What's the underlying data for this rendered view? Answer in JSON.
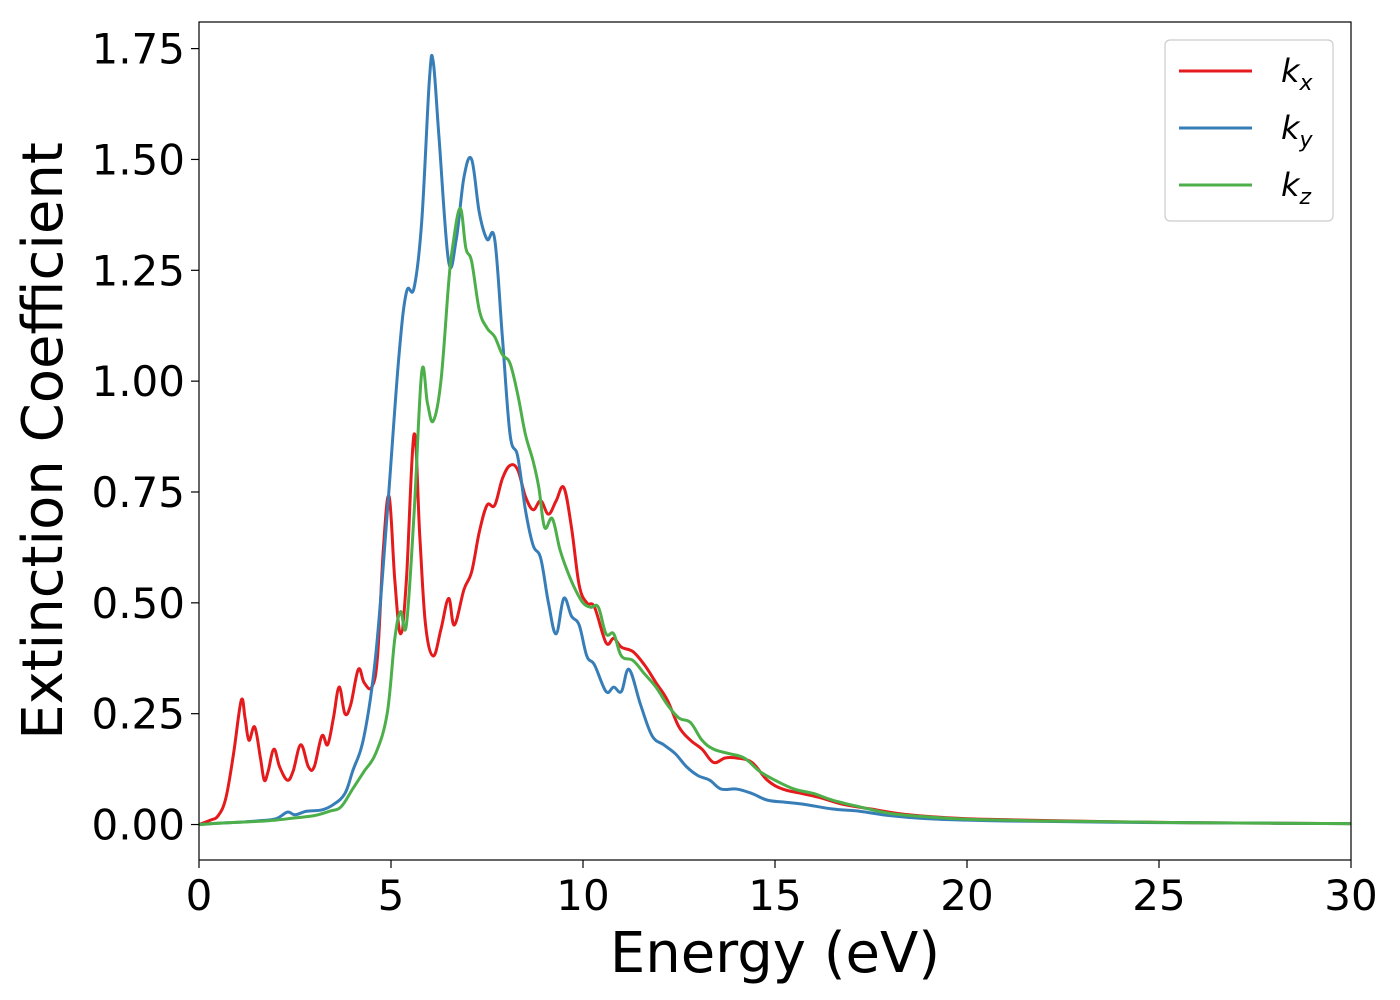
{
  "chart_data": {
    "type": "line",
    "title": "",
    "xlabel": "Energy (eV)",
    "ylabel": "Extinction Coefficient",
    "xlim": [
      0,
      30
    ],
    "ylim": [
      -0.08,
      1.81
    ],
    "x_ticks": [
      0,
      5,
      10,
      15,
      20,
      25,
      30
    ],
    "x_tick_labels": [
      "0",
      "5",
      "10",
      "15",
      "20",
      "25",
      "30"
    ],
    "y_ticks": [
      0,
      0.25,
      0.5,
      0.75,
      1.0,
      1.25,
      1.5,
      1.75
    ],
    "y_tick_labels": [
      "0.00",
      "0.25",
      "0.50",
      "0.75",
      "1.00",
      "1.25",
      "1.50",
      "1.75"
    ],
    "grid": false,
    "legend_position": "top-right",
    "series": [
      {
        "name": "k_x",
        "label_base": "k",
        "label_sub": "x",
        "color": "#e41a1c",
        "points": [
          [
            0,
            0.0
          ],
          [
            0.3,
            0.01
          ],
          [
            0.5,
            0.02
          ],
          [
            0.7,
            0.06
          ],
          [
            0.9,
            0.16
          ],
          [
            1.1,
            0.28
          ],
          [
            1.2,
            0.24
          ],
          [
            1.3,
            0.19
          ],
          [
            1.45,
            0.22
          ],
          [
            1.6,
            0.15
          ],
          [
            1.7,
            0.1
          ],
          [
            1.8,
            0.12
          ],
          [
            1.95,
            0.17
          ],
          [
            2.1,
            0.13
          ],
          [
            2.3,
            0.1
          ],
          [
            2.45,
            0.12
          ],
          [
            2.65,
            0.18
          ],
          [
            2.85,
            0.13
          ],
          [
            3.0,
            0.13
          ],
          [
            3.2,
            0.2
          ],
          [
            3.35,
            0.18
          ],
          [
            3.5,
            0.24
          ],
          [
            3.65,
            0.31
          ],
          [
            3.8,
            0.25
          ],
          [
            3.95,
            0.27
          ],
          [
            4.15,
            0.35
          ],
          [
            4.3,
            0.32
          ],
          [
            4.5,
            0.31
          ],
          [
            4.65,
            0.38
          ],
          [
            4.8,
            0.62
          ],
          [
            4.95,
            0.74
          ],
          [
            5.1,
            0.55
          ],
          [
            5.25,
            0.43
          ],
          [
            5.4,
            0.55
          ],
          [
            5.6,
            0.88
          ],
          [
            5.75,
            0.65
          ],
          [
            5.9,
            0.45
          ],
          [
            6.1,
            0.38
          ],
          [
            6.3,
            0.44
          ],
          [
            6.5,
            0.51
          ],
          [
            6.65,
            0.45
          ],
          [
            6.9,
            0.53
          ],
          [
            7.1,
            0.57
          ],
          [
            7.3,
            0.66
          ],
          [
            7.5,
            0.72
          ],
          [
            7.7,
            0.72
          ],
          [
            7.9,
            0.78
          ],
          [
            8.1,
            0.81
          ],
          [
            8.3,
            0.8
          ],
          [
            8.5,
            0.74
          ],
          [
            8.7,
            0.71
          ],
          [
            8.9,
            0.73
          ],
          [
            9.1,
            0.7
          ],
          [
            9.3,
            0.73
          ],
          [
            9.5,
            0.76
          ],
          [
            9.7,
            0.67
          ],
          [
            9.9,
            0.54
          ],
          [
            10.1,
            0.5
          ],
          [
            10.3,
            0.49
          ],
          [
            10.6,
            0.41
          ],
          [
            10.8,
            0.42
          ],
          [
            11.0,
            0.4
          ],
          [
            11.3,
            0.39
          ],
          [
            11.6,
            0.36
          ],
          [
            11.9,
            0.32
          ],
          [
            12.2,
            0.28
          ],
          [
            12.5,
            0.22
          ],
          [
            12.8,
            0.19
          ],
          [
            13.1,
            0.17
          ],
          [
            13.4,
            0.14
          ],
          [
            13.7,
            0.15
          ],
          [
            14.0,
            0.15
          ],
          [
            14.4,
            0.14
          ],
          [
            14.8,
            0.1
          ],
          [
            15.2,
            0.08
          ],
          [
            15.7,
            0.07
          ],
          [
            16.2,
            0.06
          ],
          [
            16.8,
            0.045
          ],
          [
            17.5,
            0.035
          ],
          [
            18.2,
            0.025
          ],
          [
            19,
            0.018
          ],
          [
            20,
            0.013
          ],
          [
            21,
            0.011
          ],
          [
            22,
            0.009
          ],
          [
            24,
            0.006
          ],
          [
            26,
            0.004
          ],
          [
            28,
            0.003
          ],
          [
            30,
            0.002
          ]
        ]
      },
      {
        "name": "k_y",
        "label_base": "k",
        "label_sub": "y",
        "color": "#377eb8",
        "points": [
          [
            0,
            0.0
          ],
          [
            0.5,
            0.003
          ],
          [
            1,
            0.005
          ],
          [
            1.5,
            0.008
          ],
          [
            2.0,
            0.013
          ],
          [
            2.3,
            0.028
          ],
          [
            2.5,
            0.022
          ],
          [
            2.8,
            0.03
          ],
          [
            3.2,
            0.033
          ],
          [
            3.5,
            0.045
          ],
          [
            3.8,
            0.07
          ],
          [
            4.0,
            0.12
          ],
          [
            4.3,
            0.2
          ],
          [
            4.6,
            0.38
          ],
          [
            4.9,
            0.7
          ],
          [
            5.2,
            1.05
          ],
          [
            5.4,
            1.2
          ],
          [
            5.6,
            1.21
          ],
          [
            5.8,
            1.36
          ],
          [
            6.0,
            1.68
          ],
          [
            6.1,
            1.72
          ],
          [
            6.25,
            1.55
          ],
          [
            6.5,
            1.27
          ],
          [
            6.7,
            1.32
          ],
          [
            6.9,
            1.46
          ],
          [
            7.1,
            1.5
          ],
          [
            7.3,
            1.38
          ],
          [
            7.5,
            1.32
          ],
          [
            7.7,
            1.32
          ],
          [
            7.9,
            1.1
          ],
          [
            8.1,
            0.88
          ],
          [
            8.3,
            0.83
          ],
          [
            8.5,
            0.71
          ],
          [
            8.7,
            0.63
          ],
          [
            8.9,
            0.6
          ],
          [
            9.1,
            0.5
          ],
          [
            9.3,
            0.43
          ],
          [
            9.5,
            0.51
          ],
          [
            9.7,
            0.47
          ],
          [
            9.9,
            0.45
          ],
          [
            10.1,
            0.38
          ],
          [
            10.3,
            0.36
          ],
          [
            10.6,
            0.3
          ],
          [
            10.8,
            0.31
          ],
          [
            11.0,
            0.3
          ],
          [
            11.2,
            0.35
          ],
          [
            11.5,
            0.27
          ],
          [
            11.8,
            0.2
          ],
          [
            12.1,
            0.18
          ],
          [
            12.4,
            0.16
          ],
          [
            12.7,
            0.13
          ],
          [
            13.0,
            0.11
          ],
          [
            13.3,
            0.1
          ],
          [
            13.6,
            0.08
          ],
          [
            14.0,
            0.08
          ],
          [
            14.4,
            0.07
          ],
          [
            14.8,
            0.055
          ],
          [
            15.3,
            0.05
          ],
          [
            15.8,
            0.045
          ],
          [
            16.5,
            0.035
          ],
          [
            17.2,
            0.03
          ],
          [
            18,
            0.02
          ],
          [
            19,
            0.013
          ],
          [
            20,
            0.01
          ],
          [
            21,
            0.008
          ],
          [
            22,
            0.007
          ],
          [
            24,
            0.005
          ],
          [
            26,
            0.004
          ],
          [
            28,
            0.003
          ],
          [
            30,
            0.002
          ]
        ]
      },
      {
        "name": "k_z",
        "label_base": "k",
        "label_sub": "z",
        "color": "#4daf4a",
        "points": [
          [
            0,
            0.0
          ],
          [
            0.5,
            0.003
          ],
          [
            1,
            0.005
          ],
          [
            1.5,
            0.007
          ],
          [
            2.0,
            0.01
          ],
          [
            2.5,
            0.015
          ],
          [
            3.0,
            0.02
          ],
          [
            3.4,
            0.03
          ],
          [
            3.7,
            0.04
          ],
          [
            4.0,
            0.08
          ],
          [
            4.3,
            0.12
          ],
          [
            4.6,
            0.16
          ],
          [
            4.9,
            0.25
          ],
          [
            5.1,
            0.42
          ],
          [
            5.25,
            0.48
          ],
          [
            5.4,
            0.45
          ],
          [
            5.6,
            0.7
          ],
          [
            5.8,
            1.02
          ],
          [
            5.95,
            0.95
          ],
          [
            6.1,
            0.91
          ],
          [
            6.3,
            1.0
          ],
          [
            6.5,
            1.22
          ],
          [
            6.6,
            1.3
          ],
          [
            6.8,
            1.39
          ],
          [
            6.95,
            1.3
          ],
          [
            7.1,
            1.27
          ],
          [
            7.3,
            1.16
          ],
          [
            7.5,
            1.12
          ],
          [
            7.7,
            1.1
          ],
          [
            7.9,
            1.06
          ],
          [
            8.1,
            1.04
          ],
          [
            8.3,
            0.97
          ],
          [
            8.5,
            0.88
          ],
          [
            8.7,
            0.82
          ],
          [
            8.85,
            0.76
          ],
          [
            9.0,
            0.67
          ],
          [
            9.2,
            0.69
          ],
          [
            9.4,
            0.62
          ],
          [
            9.6,
            0.57
          ],
          [
            9.8,
            0.53
          ],
          [
            10.0,
            0.5
          ],
          [
            10.2,
            0.49
          ],
          [
            10.4,
            0.49
          ],
          [
            10.6,
            0.43
          ],
          [
            10.8,
            0.43
          ],
          [
            11.0,
            0.38
          ],
          [
            11.3,
            0.37
          ],
          [
            11.6,
            0.34
          ],
          [
            11.9,
            0.31
          ],
          [
            12.2,
            0.27
          ],
          [
            12.5,
            0.24
          ],
          [
            12.8,
            0.23
          ],
          [
            13.1,
            0.19
          ],
          [
            13.4,
            0.17
          ],
          [
            13.8,
            0.16
          ],
          [
            14.2,
            0.15
          ],
          [
            14.6,
            0.12
          ],
          [
            15.0,
            0.1
          ],
          [
            15.5,
            0.08
          ],
          [
            16.0,
            0.07
          ],
          [
            16.5,
            0.055
          ],
          [
            17.2,
            0.04
          ],
          [
            18,
            0.025
          ],
          [
            19,
            0.017
          ],
          [
            20,
            0.012
          ],
          [
            21,
            0.01
          ],
          [
            22,
            0.008
          ],
          [
            24,
            0.006
          ],
          [
            26,
            0.004
          ],
          [
            28,
            0.003
          ],
          [
            30,
            0.002
          ]
        ]
      }
    ]
  }
}
